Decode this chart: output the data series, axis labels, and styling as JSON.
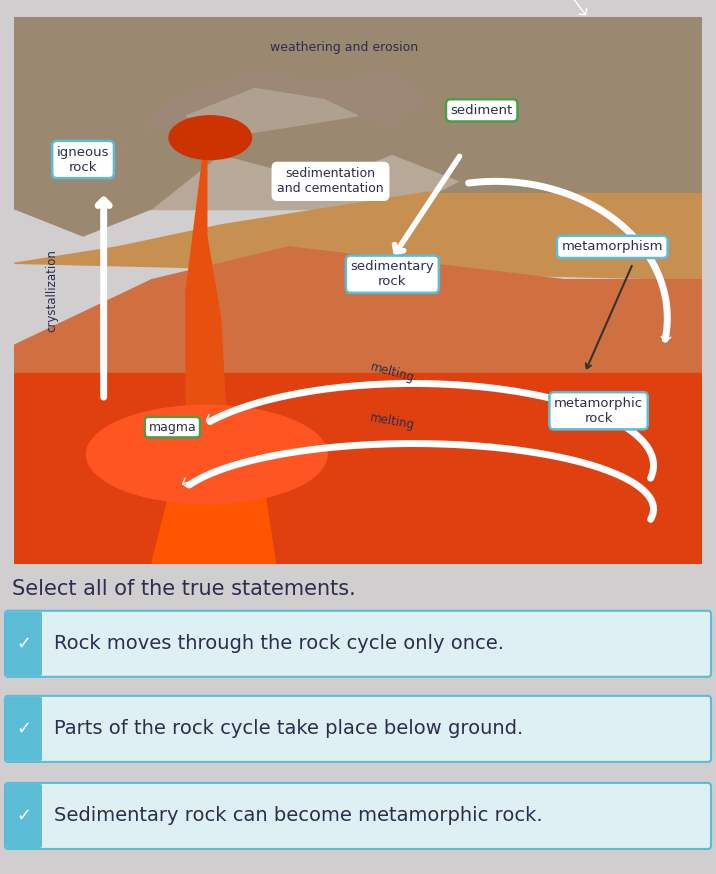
{
  "bg_color": "#d0cece",
  "select_text": "Select all of the true statements.",
  "select_fontsize": 15,
  "statements": [
    "Rock moves through the rock cycle only once.",
    "Parts of the rock cycle take place below ground.",
    "Sedimentary rock can become metamorphic rock."
  ],
  "checkbox_bg": "#dff0f5",
  "checkbox_border": "#5bbcd6",
  "text_color": "#2d2d4e",
  "label_fontsize": 14,
  "colors": {
    "outer_bg": "#b08060",
    "upper_gray": "#a09080",
    "mountain_rocky": "#8b7355",
    "water_blue": "#5b9ebd",
    "tan_layer": "#c89050",
    "orange_layer": "#d07040",
    "red_magma": "#e04010",
    "orange_red": "#e85010",
    "lava_bright": "#ff5500",
    "sediment_border": "#4a9e4a",
    "white": "#ffffff",
    "dark_text": "#2d2d4e"
  }
}
